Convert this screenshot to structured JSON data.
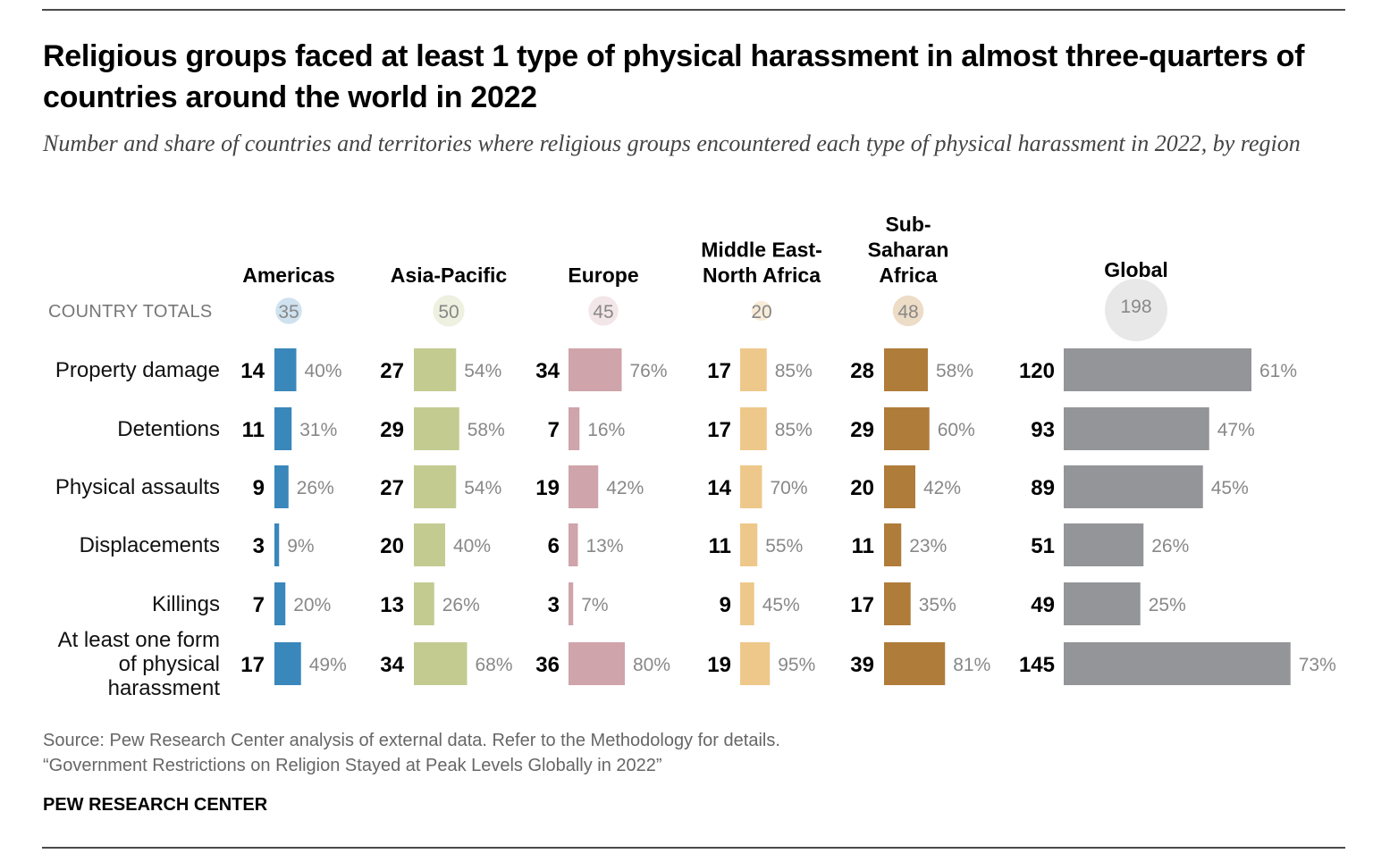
{
  "title": "Religious groups faced at least 1 type of physical harassment in almost three-quarters of countries around the world in 2022",
  "subtitle": "Number and share of countries and territories where religious groups encountered each type of physical harassment in 2022, by region",
  "chart_data": {
    "type": "bar",
    "totals_label": "COUNTRY TOTALS",
    "categories": [
      "Property damage",
      "Detentions",
      "Physical assaults",
      "Displacements",
      "Killings",
      "At least one form of physical harassment"
    ],
    "category_lines": [
      [
        "Property damage"
      ],
      [
        "Detentions"
      ],
      [
        "Physical assaults"
      ],
      [
        "Displacements"
      ],
      [
        "Killings"
      ],
      [
        "At least one form",
        "of physical",
        "harassment"
      ]
    ],
    "series": [
      {
        "name": "Americas",
        "name_lines": [
          "Americas"
        ],
        "total": 35,
        "color": "#3a87bb",
        "light": "#cfe2ef",
        "values": [
          14,
          11,
          9,
          3,
          7,
          17
        ],
        "shares": [
          "40%",
          "31%",
          "26%",
          "9%",
          "20%",
          "49%"
        ]
      },
      {
        "name": "Asia-Pacific",
        "name_lines": [
          "Asia-Pacific"
        ],
        "total": 50,
        "color": "#c3cb91",
        "light": "#eef0e0",
        "values": [
          27,
          29,
          27,
          20,
          13,
          34
        ],
        "shares": [
          "54%",
          "58%",
          "54%",
          "40%",
          "26%",
          "68%"
        ]
      },
      {
        "name": "Europe",
        "name_lines": [
          "Europe"
        ],
        "total": 45,
        "color": "#cfa4aa",
        "light": "#f3e6e8",
        "values": [
          34,
          7,
          19,
          6,
          3,
          36
        ],
        "shares": [
          "76%",
          "16%",
          "42%",
          "13%",
          "7%",
          "80%"
        ]
      },
      {
        "name": "Middle East-North Africa",
        "name_lines": [
          "Middle East-",
          "North Africa"
        ],
        "total": 20,
        "color": "#eec88a",
        "light": "#f8ecd8",
        "values": [
          17,
          17,
          14,
          11,
          9,
          19
        ],
        "shares": [
          "85%",
          "85%",
          "70%",
          "55%",
          "45%",
          "95%"
        ]
      },
      {
        "name": "Sub-Saharan Africa",
        "name_lines": [
          "Sub-",
          "Saharan",
          "Africa"
        ],
        "total": 48,
        "color": "#b07c3a",
        "light": "#eddcc6",
        "values": [
          28,
          29,
          20,
          11,
          17,
          39
        ],
        "shares": [
          "58%",
          "60%",
          "42%",
          "23%",
          "35%",
          "81%"
        ]
      },
      {
        "name": "Global",
        "name_lines": [
          "Global"
        ],
        "total": 198,
        "color": "#939598",
        "light": "#e8e8e9",
        "values": [
          120,
          93,
          89,
          51,
          49,
          145
        ],
        "shares": [
          "61%",
          "47%",
          "45%",
          "26%",
          "25%",
          "73%"
        ]
      }
    ]
  },
  "footer": {
    "source": "Source: Pew Research Center analysis of external data. Refer to the Methodology for details.",
    "report": "“Government Restrictions on Religion Stayed at Peak Levels Globally in 2022”",
    "brand": "PEW RESEARCH CENTER"
  }
}
